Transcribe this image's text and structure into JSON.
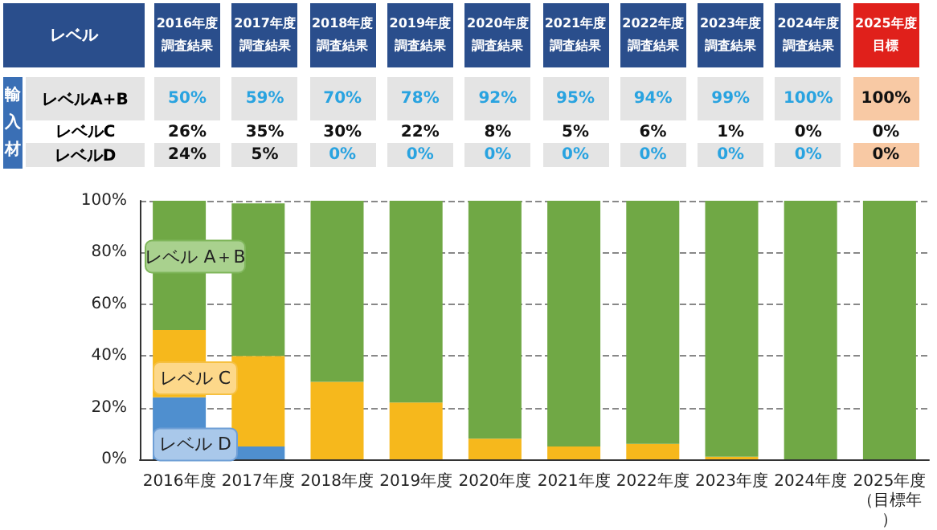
{
  "chart_data": {
    "type": "bar",
    "stacked": true,
    "categories": [
      "2016年度",
      "2017年度",
      "2018年度",
      "2019年度",
      "2020年度",
      "2021年度",
      "2022年度",
      "2023年度",
      "2024年度",
      "2025年度（目標年）"
    ],
    "series": [
      {
        "name": "レベル D",
        "color": "#4f8fcf",
        "values": [
          24,
          5,
          0,
          0,
          0,
          0,
          0,
          0,
          0,
          0
        ],
        "value_labels": [
          "24%",
          "5%",
          "0%",
          "0%",
          "0%",
          "0%",
          "0%",
          "0%",
          "0%",
          "0%"
        ]
      },
      {
        "name": "レベル C",
        "color": "#f6b81c",
        "values": [
          26,
          35,
          30,
          22,
          8,
          5,
          6,
          1,
          0,
          0
        ],
        "value_labels": [
          "26%",
          "35%",
          "30%",
          "22%",
          "8%",
          "5%",
          "6%",
          "1%",
          "0%",
          "0%"
        ]
      },
      {
        "name": "レベル A＋B",
        "color": "#70a845",
        "values": [
          50,
          59,
          70,
          78,
          92,
          95,
          94,
          99,
          100,
          100
        ],
        "value_labels": [
          "50%",
          "59%",
          "70%",
          "78%",
          "92%",
          "95%",
          "94%",
          "99%",
          "100%",
          "100%"
        ]
      }
    ],
    "annotations": [
      "レベル",
      "輸入材",
      "レベルA+B",
      "レベルC",
      "レベルD",
      "2016年度調査結果",
      "2017年度調査結果",
      "2018年度調査結果",
      "2019年度調査結果",
      "2020年度調査結果",
      "2021年度調査結果",
      "2022年度調査結果",
      "2023年度調査結果",
      "2024年度調査結果",
      "2025年度目標"
    ],
    "ylim": [
      0,
      100
    ],
    "yticks": [
      {
        "value": 0,
        "label": "0%"
      },
      {
        "value": 20,
        "label": "20%"
      },
      {
        "value": 40,
        "label": "40%"
      },
      {
        "value": 60,
        "label": "60%"
      },
      {
        "value": 80,
        "label": "80%"
      },
      {
        "value": 100,
        "label": "100%"
      }
    ],
    "grid": "y",
    "legend": false
  }
}
